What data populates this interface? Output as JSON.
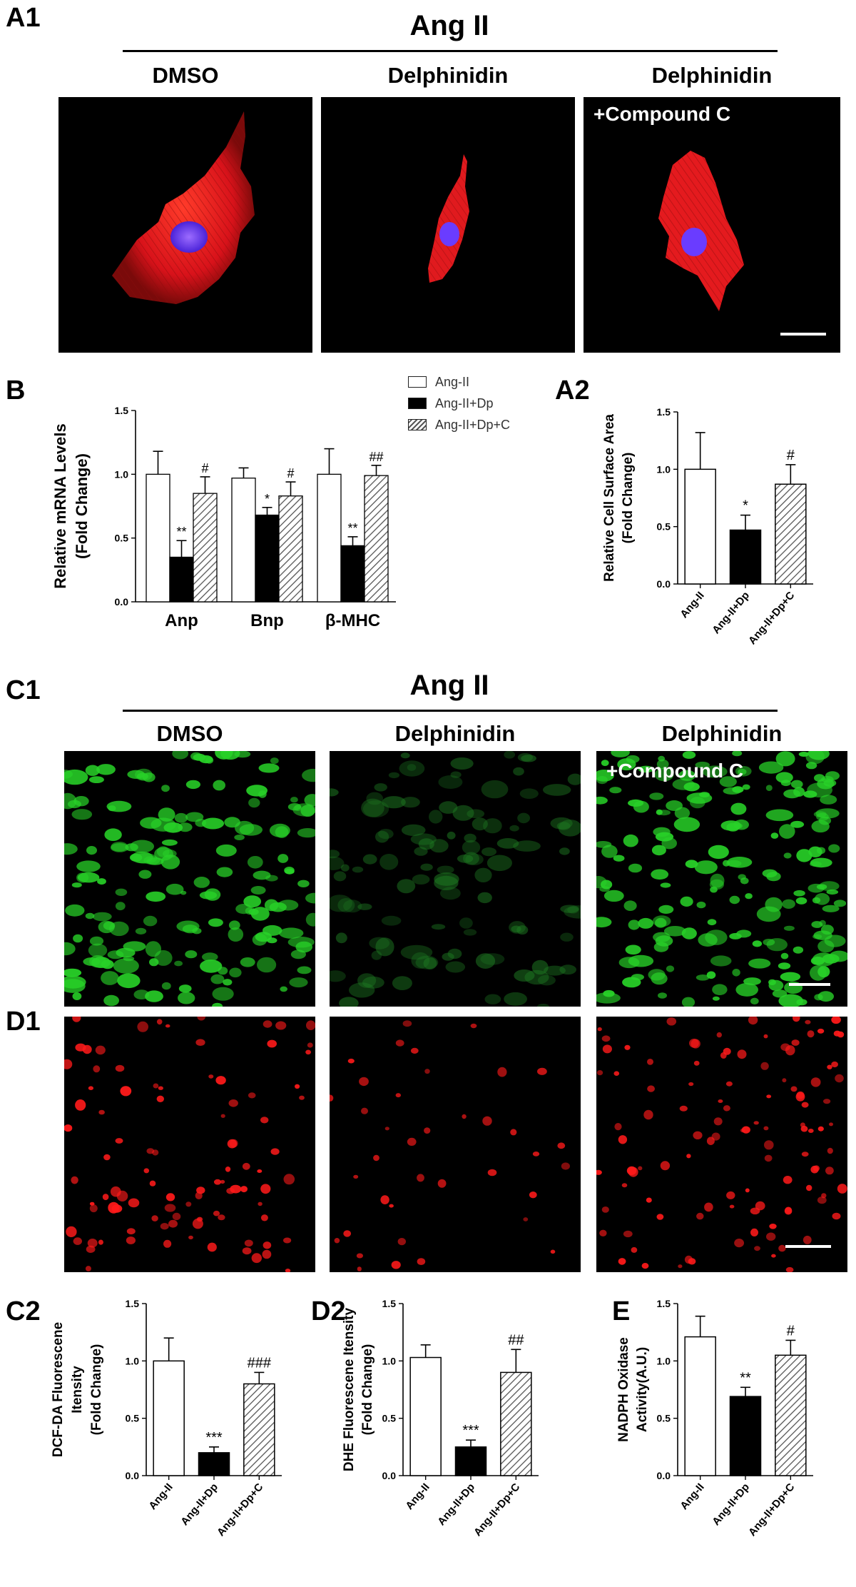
{
  "panels": {
    "a1": "A1",
    "a2": "A2",
    "b": "B",
    "c1": "C1",
    "d1": "D1",
    "c2": "C2",
    "d2": "D2",
    "e": "E"
  },
  "section_top": {
    "title": "Ang II",
    "columns": [
      "DMSO",
      "Delphinidin",
      "Delphinidin"
    ],
    "overlay": "+Compound C"
  },
  "section_mid": {
    "title": "Ang II",
    "columns": [
      "DMSO",
      "Delphinidin",
      "Delphinidin"
    ],
    "overlay": "+Compound C"
  },
  "legend": {
    "items": [
      "Ang-II",
      "Ang-II+Dp",
      "Ang-II+Dp+C"
    ]
  },
  "colors": {
    "actin_red": "#e8141e",
    "nucleus_blue": "#6a3cff",
    "dcf_green": "#28d228",
    "dhe_red": "#ff1a1a",
    "bar_white": "#ffffff",
    "bar_black": "#000000",
    "hatch": "#555555"
  },
  "chart_data": [
    {
      "id": "B",
      "type": "bar",
      "ylabel": "Relative mRNA Levels (Fold Change)",
      "categories": [
        "Anp",
        "Bnp",
        "β-MHC"
      ],
      "ylim": [
        0,
        1.5
      ],
      "yticks": [
        "0.0",
        "0.5",
        "1.0",
        "1.5"
      ],
      "series": [
        {
          "name": "Ang-II",
          "values": [
            1.0,
            0.97,
            1.0
          ],
          "errors": [
            0.18,
            0.08,
            0.2
          ],
          "annotations": [
            "",
            "",
            ""
          ]
        },
        {
          "name": "Ang-II+Dp",
          "values": [
            0.35,
            0.68,
            0.44
          ],
          "errors": [
            0.13,
            0.06,
            0.07
          ],
          "annotations": [
            "**",
            "*",
            "**"
          ]
        },
        {
          "name": "Ang-II+Dp+C",
          "values": [
            0.85,
            0.83,
            0.99
          ],
          "errors": [
            0.13,
            0.11,
            0.08
          ],
          "annotations": [
            "#",
            "#",
            "##"
          ]
        }
      ]
    },
    {
      "id": "A2",
      "type": "bar",
      "ylabel": "Relative Cell Surface Area (Fold Change)",
      "categories": [
        "Ang-II",
        "Ang-II+Dp",
        "Ang-II+Dp+C"
      ],
      "ylim": [
        0,
        1.5
      ],
      "yticks": [
        "0.0",
        "0.5",
        "1.0",
        "1.5"
      ],
      "values": [
        1.0,
        0.47,
        0.87
      ],
      "errors": [
        0.32,
        0.13,
        0.17
      ],
      "annotations": [
        "",
        "*",
        "#"
      ]
    },
    {
      "id": "C2",
      "type": "bar",
      "ylabel": "DCF-DA Fluorescene Itensity (Fold Change)",
      "categories": [
        "Ang-II",
        "Ang-II+Dp",
        "Ang-II+Dp+C"
      ],
      "ylim": [
        0,
        1.5
      ],
      "yticks": [
        "0.0",
        "0.5",
        "1.0",
        "1.5"
      ],
      "values": [
        1.0,
        0.2,
        0.8
      ],
      "errors": [
        0.2,
        0.05,
        0.1
      ],
      "annotations": [
        "",
        "***",
        "###"
      ]
    },
    {
      "id": "D2",
      "type": "bar",
      "ylabel": "DHE Fluorescene Itensity (Fold Change)",
      "categories": [
        "Ang-II",
        "Ang-II+Dp",
        "Ang-II+Dp+C"
      ],
      "ylim": [
        0,
        1.5
      ],
      "yticks": [
        "0.0",
        "0.5",
        "1.0",
        "1.5"
      ],
      "values": [
        1.03,
        0.25,
        0.9
      ],
      "errors": [
        0.11,
        0.06,
        0.2
      ],
      "annotations": [
        "",
        "***",
        "##"
      ]
    },
    {
      "id": "E",
      "type": "bar",
      "ylabel": "NADPH Oxidase Activity(A.U.)",
      "categories": [
        "Ang-II",
        "Ang-II+Dp",
        "Ang-II+Dp+C"
      ],
      "ylim": [
        0,
        1.5
      ],
      "yticks": [
        "0.0",
        "0.5",
        "1.0",
        "1.5"
      ],
      "values": [
        1.21,
        0.69,
        1.05
      ],
      "errors": [
        0.18,
        0.08,
        0.13
      ],
      "annotations": [
        "",
        "**",
        "#"
      ]
    }
  ]
}
